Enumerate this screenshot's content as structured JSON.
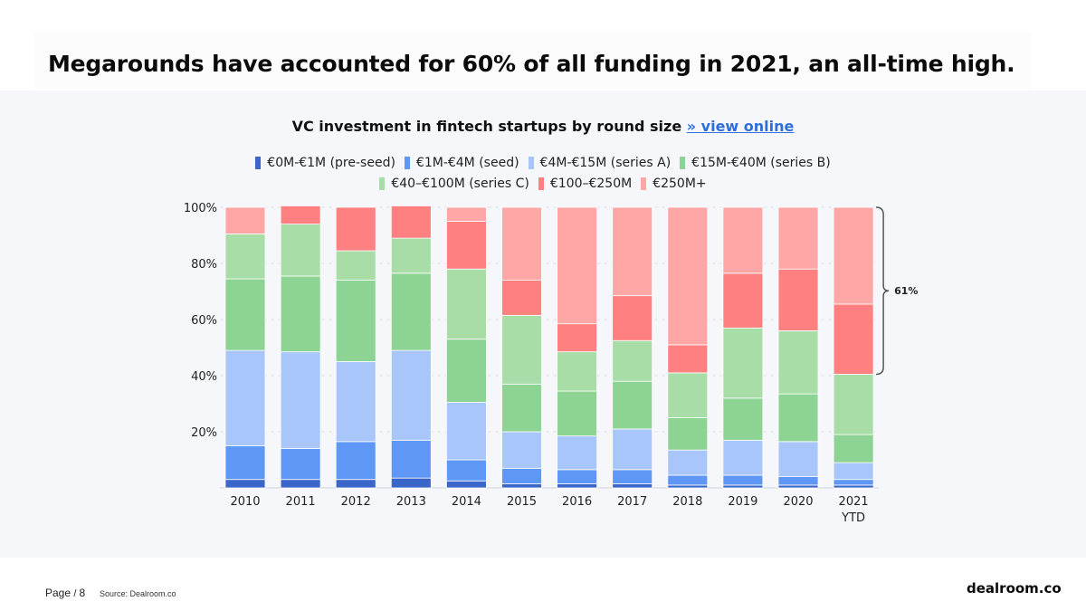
{
  "headline": "Megarounds have accounted for 60% of all funding in 2021, an all-time high.",
  "chart_data": {
    "type": "bar",
    "stacked": true,
    "title": "VC investment in fintech startups by round size",
    "title_link": "» view online",
    "categories": [
      "2010",
      "2011",
      "2012",
      "2013",
      "2014",
      "2015",
      "2016",
      "2017",
      "2018",
      "2019",
      "2020",
      "2021|YTD"
    ],
    "yticks": [
      "20%",
      "40%",
      "60%",
      "80%",
      "100%"
    ],
    "ylim": [
      0,
      100
    ],
    "series": [
      {
        "name": "€0M-€1M  (pre-seed)",
        "color": "#3a66c9",
        "values": [
          3,
          3,
          3,
          3.5,
          2.5,
          1.5,
          1.5,
          1.5,
          1,
          1,
          1,
          1
        ]
      },
      {
        "name": "€1M-€4M (seed)",
        "color": "#5e97f6",
        "values": [
          12,
          11,
          13.5,
          13.5,
          7.5,
          5.5,
          5,
          5,
          3.5,
          3.5,
          3,
          2
        ]
      },
      {
        "name": "€4M-€15M (series A)",
        "color": "#a8c6fa",
        "values": [
          34,
          34.5,
          28.5,
          32,
          20.5,
          13,
          12,
          14.5,
          9,
          12.5,
          12.5,
          6
        ]
      },
      {
        "name": "€15M-€40M (series B)",
        "color": "#8dd393",
        "values": [
          25.5,
          27,
          29,
          27.5,
          22.5,
          17,
          16,
          17,
          11.5,
          15,
          17,
          10
        ]
      },
      {
        "name": "€40–€100M (series C)",
        "color": "#a8dda8",
        "values": [
          16,
          18.5,
          10.5,
          12.5,
          25,
          24.5,
          14,
          14.5,
          16,
          25,
          22.5,
          21.5
        ]
      },
      {
        "name": "€100–€250M",
        "color": "#ff8080",
        "values": [
          0,
          6.5,
          15.5,
          11.5,
          17,
          12.5,
          10,
          16,
          10,
          19.5,
          22,
          25
        ]
      },
      {
        "name": "€250M+",
        "color": "#ffa6a6",
        "values": [
          9.5,
          0,
          0,
          0,
          5,
          26,
          41.5,
          31.5,
          49,
          23.5,
          22,
          34.5
        ]
      }
    ],
    "annotation": "61%"
  },
  "footer": {
    "page_label": "Page",
    "page_number": "8",
    "source": "Source: Dealroom.co"
  },
  "brand": "dealroom.co"
}
